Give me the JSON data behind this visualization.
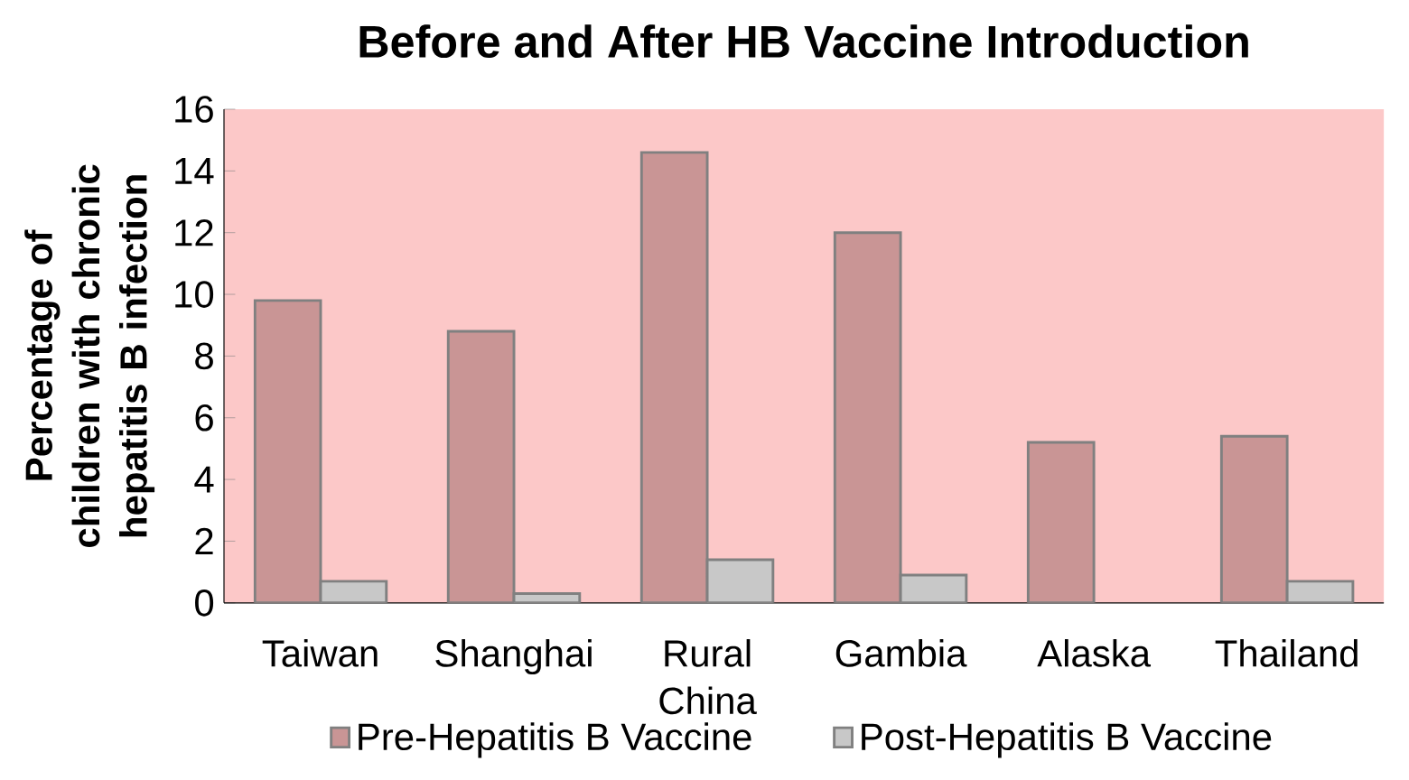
{
  "chart_data": {
    "type": "bar",
    "title": "Before and After HB Vaccine Introduction",
    "ylabel": "Percentage of children with chronic hepatitis B infection",
    "categories": [
      "Taiwan",
      "Shanghai",
      "Rural China",
      "Gambia",
      "Alaska",
      "Thailand"
    ],
    "series": [
      {
        "name": "Pre-Hepatitis B Vaccine",
        "color": "#c99595",
        "values": [
          9.8,
          8.8,
          14.6,
          12.0,
          5.2,
          5.4
        ]
      },
      {
        "name": "Post-Hepatitis B Vaccine",
        "color": "#c8c8c8",
        "values": [
          0.7,
          0.3,
          1.4,
          0.9,
          null,
          0.7
        ]
      }
    ],
    "ylim": [
      0,
      16
    ],
    "yticks": [
      0,
      2,
      4,
      6,
      8,
      10,
      12,
      14,
      16
    ],
    "grid": false,
    "legend": "bottom"
  }
}
